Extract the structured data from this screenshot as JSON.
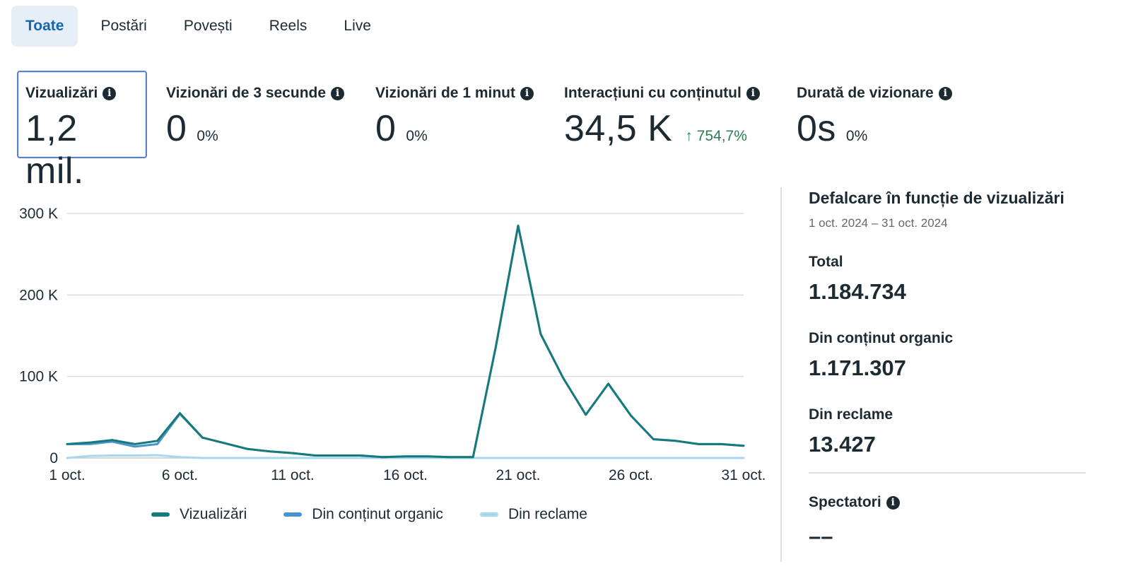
{
  "tabs": [
    {
      "label": "Toate",
      "active": true
    },
    {
      "label": "Postări",
      "active": false
    },
    {
      "label": "Povești",
      "active": false
    },
    {
      "label": "Reels",
      "active": false
    },
    {
      "label": "Live",
      "active": false
    }
  ],
  "metrics": [
    {
      "label": "Vizualizări",
      "value": "1,2 mil.",
      "pct": "",
      "change": "",
      "selected": true
    },
    {
      "label": "Vizionări de 3 secunde",
      "value": "0",
      "pct": "0%",
      "change": ""
    },
    {
      "label": "Vizionări de 1 minut",
      "value": "0",
      "pct": "0%",
      "change": ""
    },
    {
      "label": "Interacțiuni cu conținutul",
      "value": "34,5 K",
      "pct": "",
      "change": "↑ 754,7%"
    },
    {
      "label": "Durată de vizionare",
      "value": "0s",
      "pct": "0%",
      "change": ""
    }
  ],
  "chart_data": {
    "type": "line",
    "x_tick_labels": [
      "1 oct.",
      "6 oct.",
      "11 oct.",
      "16 oct.",
      "21 oct.",
      "26 oct.",
      "31 oct."
    ],
    "y_tick_labels": [
      "0",
      "100 K",
      "200 K",
      "300 K"
    ],
    "ylim": [
      0,
      300000
    ],
    "x": [
      1,
      2,
      3,
      4,
      5,
      6,
      7,
      8,
      9,
      10,
      11,
      12,
      13,
      14,
      15,
      16,
      17,
      18,
      19,
      20,
      21,
      22,
      23,
      24,
      25,
      26,
      27,
      28,
      29,
      30,
      31
    ],
    "series": [
      {
        "name": "Vizualizări",
        "color": "#177a7a",
        "values": [
          17000,
          19000,
          22000,
          17000,
          21000,
          55000,
          25000,
          18000,
          11000,
          8000,
          6000,
          3000,
          3000,
          3000,
          1000,
          2000,
          2000,
          1000,
          1000,
          135000,
          285000,
          152000,
          98000,
          53000,
          91000,
          52000,
          23000,
          21000,
          17000,
          17000,
          15000
        ]
      },
      {
        "name": "Din conținut organic",
        "color": "#4a95d0",
        "values": [
          17000,
          17000,
          20000,
          14000,
          17000,
          54000,
          25000,
          18000,
          11000,
          8000,
          6000,
          3000,
          3000,
          3000,
          1000,
          2000,
          2000,
          1000,
          1000,
          135000,
          285000,
          152000,
          98000,
          53000,
          91000,
          52000,
          23000,
          21000,
          17000,
          17000,
          15000
        ]
      },
      {
        "name": "Din reclame",
        "color": "#a7d7ef",
        "values": [
          0,
          2500,
          3000,
          3000,
          3500,
          1000,
          0,
          0,
          0,
          0,
          0,
          0,
          0,
          0,
          0,
          0,
          0,
          0,
          0,
          0,
          0,
          0,
          0,
          0,
          0,
          0,
          0,
          0,
          0,
          0,
          0
        ]
      }
    ],
    "grid": true,
    "legend_position": "bottom"
  },
  "legend": [
    {
      "label": "Vizualizări",
      "color": "#177a7a"
    },
    {
      "label": "Din conținut organic",
      "color": "#4a95d0"
    },
    {
      "label": "Din reclame",
      "color": "#a7d7ef"
    }
  ],
  "breakdown": {
    "title": "Defalcare în funcție de vizualizări",
    "date_range": "1 oct. 2024 – 31 oct. 2024",
    "total_label": "Total",
    "total_value": "1.184.734",
    "organic_label": "Din conținut organic",
    "organic_value": "1.171.307",
    "ads_label": "Din reclame",
    "ads_value": "13.427",
    "viewers_label": "Spectatori",
    "viewers_value": "––"
  },
  "icons": {
    "info": "info-icon",
    "arrow_up": "arrow-up-icon"
  }
}
